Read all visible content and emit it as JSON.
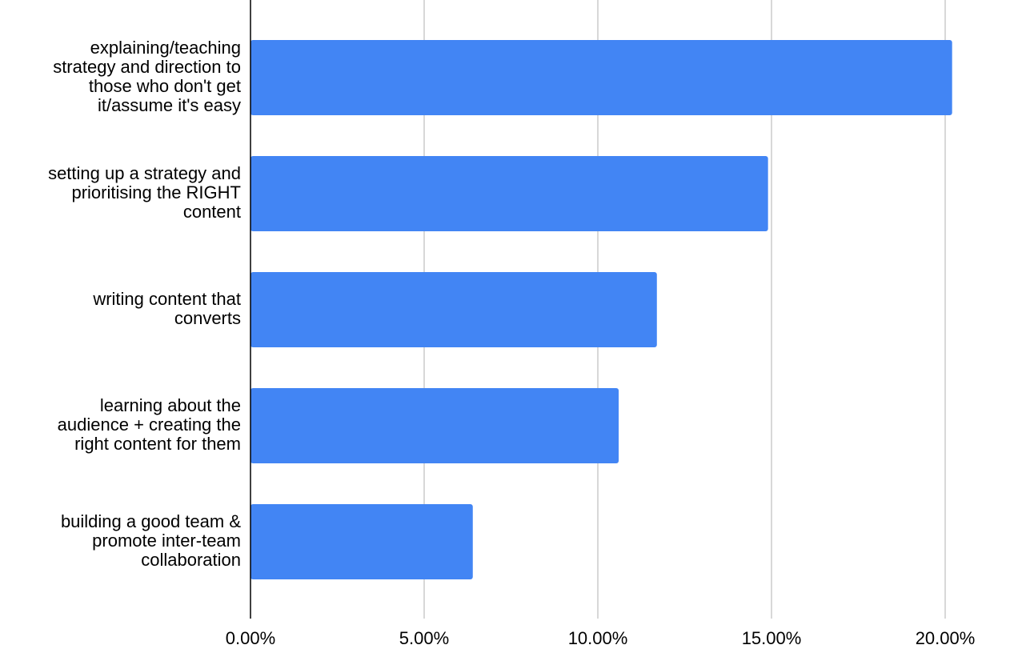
{
  "chart_data": {
    "type": "bar",
    "orientation": "horizontal",
    "categories": [
      "explaining/teaching strategy and direction to those who don't get it/assume it's easy",
      "setting up a strategy and prioritising the RIGHT content",
      "writing content that converts",
      "learning about the audience + creating the right content for them",
      "building a good team & promote inter-team collaboration"
    ],
    "category_lines": [
      [
        "explaining/teaching",
        "strategy and direction to",
        "those who don't get",
        "it/assume it's easy"
      ],
      [
        "setting up a strategy and",
        "prioritising the RIGHT",
        "content"
      ],
      [
        "writing content that",
        "converts"
      ],
      [
        "learning about the",
        "audience + creating the",
        "right content for them"
      ],
      [
        "building a good team &",
        "promote inter-team",
        "collaboration"
      ]
    ],
    "values": [
      20.2,
      14.9,
      11.7,
      10.6,
      6.4
    ],
    "value_format": "percent",
    "xlim": [
      0,
      20
    ],
    "x_ticks": [
      0,
      5,
      10,
      15,
      20
    ],
    "x_tick_labels": [
      "0.00%",
      "5.00%",
      "10.00%",
      "15.00%",
      "20.00%"
    ],
    "title": "",
    "xlabel": "",
    "ylabel": "",
    "grid": true,
    "legend": "none",
    "colors": {
      "bar": "#4285f4",
      "grid": "#cccccc",
      "axis": "#000000",
      "text": "#000000"
    }
  }
}
